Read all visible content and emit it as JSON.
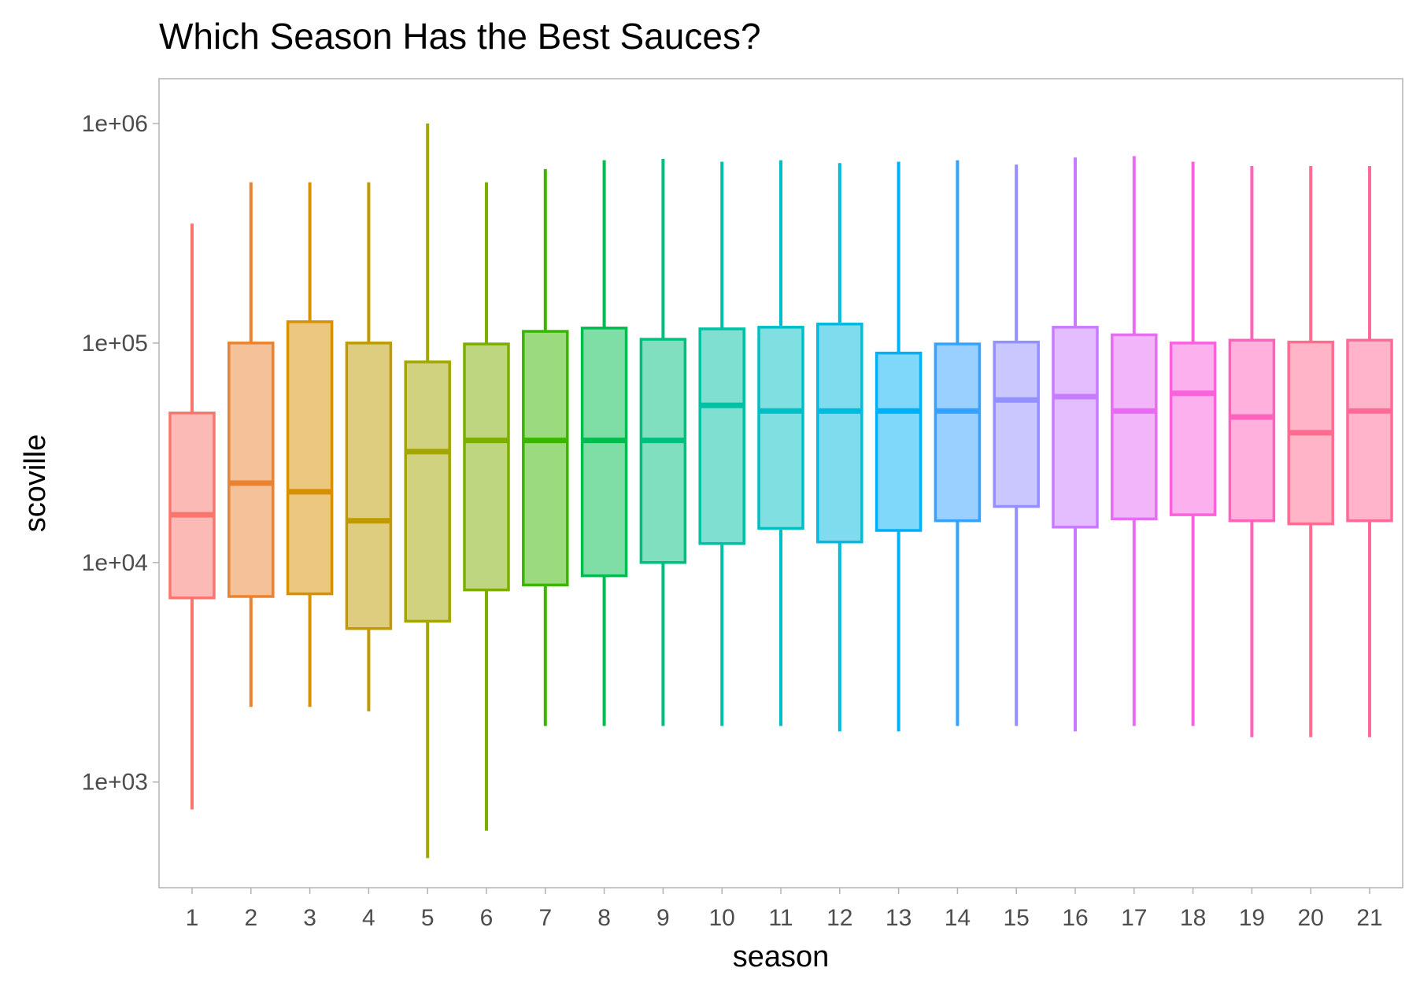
{
  "chart_data": {
    "type": "box",
    "title": "Which Season Has the Best Sauces?",
    "xlabel": "season",
    "ylabel": "scoville",
    "yscale": "log10",
    "ylim": [
      330,
      1600000
    ],
    "y_ticks": [
      1000,
      10000,
      100000,
      1000000
    ],
    "y_tick_labels": [
      "1e+03",
      "1e+04",
      "1e+05",
      "1e+06"
    ],
    "categories": [
      "1",
      "2",
      "3",
      "4",
      "5",
      "6",
      "7",
      "8",
      "9",
      "10",
      "11",
      "12",
      "13",
      "14",
      "15",
      "16",
      "17",
      "18",
      "19",
      "20",
      "21"
    ],
    "colors": [
      "#F8766D",
      "#EA8331",
      "#D89000",
      "#C09B00",
      "#A3A500",
      "#7CAE00",
      "#39B600",
      "#00BB4E",
      "#00BF7D",
      "#00C1A3",
      "#00BFC4",
      "#00BAE0",
      "#00B0F6",
      "#35A2FF",
      "#9590FF",
      "#C77CFF",
      "#E76BF3",
      "#FA62DB",
      "#FF62BC",
      "#FF6C90",
      "#FF6A98"
    ],
    "boxes": [
      {
        "season": "1",
        "min": 750,
        "q1": 6900,
        "median": 16500,
        "q3": 48000,
        "max": 350000
      },
      {
        "season": "2",
        "min": 2200,
        "q1": 7000,
        "median": 23000,
        "q3": 100000,
        "max": 540000
      },
      {
        "season": "3",
        "min": 2200,
        "q1": 7200,
        "median": 21000,
        "q3": 125000,
        "max": 540000
      },
      {
        "season": "4",
        "min": 2100,
        "q1": 5000,
        "median": 15500,
        "q3": 100000,
        "max": 540000
      },
      {
        "season": "5",
        "min": 450,
        "q1": 5400,
        "median": 32000,
        "q3": 82000,
        "max": 1000000
      },
      {
        "season": "6",
        "min": 600,
        "q1": 7500,
        "median": 36000,
        "q3": 99000,
        "max": 540000
      },
      {
        "season": "7",
        "min": 1800,
        "q1": 7900,
        "median": 36000,
        "q3": 113000,
        "max": 620000
      },
      {
        "season": "8",
        "min": 1800,
        "q1": 8700,
        "median": 36000,
        "q3": 117000,
        "max": 680000
      },
      {
        "season": "9",
        "min": 1800,
        "q1": 10000,
        "median": 36000,
        "q3": 104000,
        "max": 690000
      },
      {
        "season": "10",
        "min": 1800,
        "q1": 12200,
        "median": 52000,
        "q3": 116000,
        "max": 670000
      },
      {
        "season": "11",
        "min": 1800,
        "q1": 14300,
        "median": 49000,
        "q3": 118000,
        "max": 680000
      },
      {
        "season": "12",
        "min": 1700,
        "q1": 12400,
        "median": 49000,
        "q3": 122000,
        "max": 660000
      },
      {
        "season": "13",
        "min": 1700,
        "q1": 14000,
        "median": 49000,
        "q3": 90000,
        "max": 670000
      },
      {
        "season": "14",
        "min": 1800,
        "q1": 15500,
        "median": 49000,
        "q3": 99000,
        "max": 680000
      },
      {
        "season": "15",
        "min": 1800,
        "q1": 18000,
        "median": 55000,
        "q3": 101000,
        "max": 650000
      },
      {
        "season": "16",
        "min": 1700,
        "q1": 14500,
        "median": 57000,
        "q3": 118000,
        "max": 700000
      },
      {
        "season": "17",
        "min": 1800,
        "q1": 15800,
        "median": 49000,
        "q3": 109000,
        "max": 710000
      },
      {
        "season": "18",
        "min": 1800,
        "q1": 16500,
        "median": 59000,
        "q3": 100000,
        "max": 670000
      },
      {
        "season": "19",
        "min": 1600,
        "q1": 15500,
        "median": 46000,
        "q3": 103000,
        "max": 640000
      },
      {
        "season": "20",
        "min": 1600,
        "q1": 15000,
        "median": 39000,
        "q3": 101000,
        "max": 640000
      },
      {
        "season": "21",
        "min": 1600,
        "q1": 15500,
        "median": 49000,
        "q3": 103000,
        "max": 640000
      }
    ],
    "grid": false,
    "legend": "none"
  }
}
